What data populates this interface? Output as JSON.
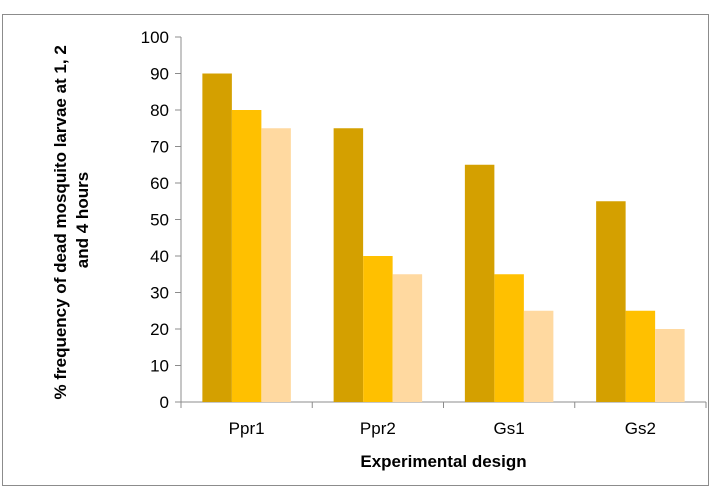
{
  "chart_data": {
    "type": "bar",
    "title": "",
    "xlabel": "Experimental design",
    "ylabel_lines": [
      "% frequency of dead mosquito larvae at 1, 2",
      "and 4 hours"
    ],
    "categories": [
      "Ppr1",
      "Ppr2",
      "Gs1",
      "Gs2"
    ],
    "series": [
      {
        "values": [
          90,
          75,
          65,
          55
        ],
        "color": "#D4A000"
      },
      {
        "values": [
          80,
          40,
          35,
          25
        ],
        "color": "#FFC000"
      },
      {
        "values": [
          75,
          35,
          25,
          20
        ],
        "color": "#FFD9A0"
      }
    ],
    "ylim": [
      0,
      100
    ],
    "yticks": [
      0,
      10,
      20,
      30,
      40,
      50,
      60,
      70,
      80,
      90,
      100
    ],
    "grid": false,
    "legend": "none"
  }
}
